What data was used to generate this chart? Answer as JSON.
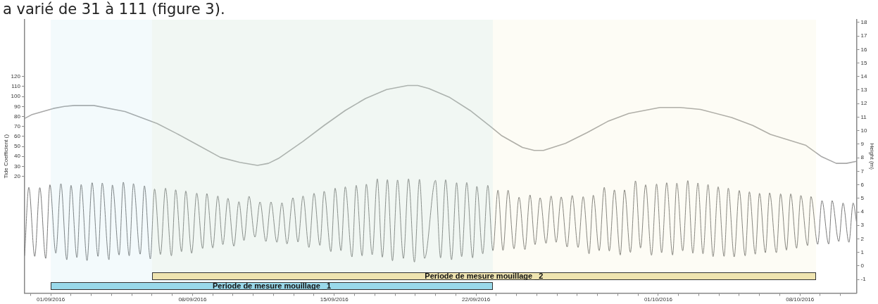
{
  "chart_data": {
    "type": "line",
    "annotations": [
      "a varié de 31 à 111 (figure 3)."
    ],
    "ylabel": "Tide Coefficient ()",
    "y2label": "Height (m)",
    "xlim": [
      "2016-08-30T17:00",
      "2016-10-10T19:00"
    ],
    "xticks": [
      {
        "value": "2016-08-31",
        "label": null
      },
      {
        "value": "2016-09-01",
        "label": "01/09/2016"
      },
      {
        "value": "2016-09-02",
        "label": null
      },
      {
        "value": "2016-09-03",
        "label": null
      },
      {
        "value": "2016-09-04",
        "label": null
      },
      {
        "value": "2016-09-05",
        "label": null
      },
      {
        "value": "2016-09-06",
        "label": null
      },
      {
        "value": "2016-09-07",
        "label": null
      },
      {
        "value": "2016-09-08",
        "label": "08/09/2016"
      },
      {
        "value": "2016-09-09",
        "label": null
      },
      {
        "value": "2016-09-10",
        "label": null
      },
      {
        "value": "2016-09-11",
        "label": null
      },
      {
        "value": "2016-09-12",
        "label": null
      },
      {
        "value": "2016-09-13",
        "label": null
      },
      {
        "value": "2016-09-14",
        "label": null
      },
      {
        "value": "2016-09-15",
        "label": "15/09/2016"
      },
      {
        "value": "2016-09-16",
        "label": null
      },
      {
        "value": "2016-09-17",
        "label": null
      },
      {
        "value": "2016-09-18",
        "label": null
      },
      {
        "value": "2016-09-19",
        "label": null
      },
      {
        "value": "2016-09-20",
        "label": null
      },
      {
        "value": "2016-09-21",
        "label": null
      },
      {
        "value": "2016-09-22",
        "label": "22/09/2016"
      },
      {
        "value": "2016-09-23",
        "label": null
      },
      {
        "value": "2016-09-24",
        "label": null
      },
      {
        "value": "2016-09-25",
        "label": null
      },
      {
        "value": "2016-09-26",
        "label": null
      },
      {
        "value": "2016-09-27",
        "label": null
      },
      {
        "value": "2016-09-28",
        "label": null
      },
      {
        "value": "2016-09-29",
        "label": null
      },
      {
        "value": "2016-09-30",
        "label": null
      },
      {
        "value": "2016-10-01",
        "label": "01/10/2016"
      },
      {
        "value": "2016-10-02",
        "label": null
      },
      {
        "value": "2016-10-03",
        "label": null
      },
      {
        "value": "2016-10-04",
        "label": null
      },
      {
        "value": "2016-10-05",
        "label": null
      },
      {
        "value": "2016-10-06",
        "label": null
      },
      {
        "value": "2016-10-07",
        "label": null
      },
      {
        "value": "2016-10-08",
        "label": "08/10/2016"
      },
      {
        "value": "2016-10-09",
        "label": null
      },
      {
        "value": "2016-10-10",
        "label": null
      }
    ],
    "ylim": [
      -97,
      177
    ],
    "yticks": [
      20,
      30,
      40,
      50,
      60,
      70,
      80,
      90,
      100,
      110,
      120
    ],
    "y2lim": [
      -2,
      18.2
    ],
    "y2ticks": [
      -1,
      0,
      1,
      2,
      3,
      4,
      5,
      6,
      7,
      8,
      9,
      10,
      11,
      12,
      13,
      14,
      15,
      16,
      17,
      18
    ],
    "series": [
      {
        "type": "line",
        "color": "#a8a8a8",
        "x": [
          "2016-08-30T17:00",
          "2016-08-31T02:00",
          "2016-09-01T03:00",
          "2016-09-01T16:00",
          "2016-09-02T04:00",
          "2016-09-03T03:00",
          "2016-09-04T16:00",
          "2016-09-06T06:00",
          "2016-09-07T05:00",
          "2016-09-08T05:00",
          "2016-09-09T09:00",
          "2016-09-10T08:00",
          "2016-09-11T05:00",
          "2016-09-11T18:00",
          "2016-09-12T06:00",
          "2016-09-13T11:00",
          "2016-09-14T12:00",
          "2016-09-15T13:00",
          "2016-09-16T13:00",
          "2016-09-17T14:00",
          "2016-09-18T15:00",
          "2016-09-19T03:00",
          "2016-09-19T16:00",
          "2016-09-20T17:00",
          "2016-09-21T17:00",
          "2016-09-22T17:00",
          "2016-09-23T06:00",
          "2016-09-24T07:00",
          "2016-09-24T21:00",
          "2016-09-25T08:00",
          "2016-09-26T10:00",
          "2016-09-27T12:00",
          "2016-09-28T12:00",
          "2016-09-29T13:00",
          "2016-10-01T02:00",
          "2016-10-02T02:00",
          "2016-10-03T02:00",
          "2016-10-04T15:00",
          "2016-10-05T16:00",
          "2016-10-06T13:00",
          "2016-10-08T07:00",
          "2016-10-09T01:00",
          "2016-10-09T19:00",
          "2016-10-10T07:00",
          "2016-10-10T19:00"
        ],
        "values": [
          78,
          82,
          88,
          90,
          91,
          91,
          85,
          73,
          63,
          52,
          39,
          34,
          31,
          33,
          38,
          55,
          71,
          86,
          98,
          107,
          111,
          111,
          108,
          99,
          86,
          70,
          61,
          49,
          46,
          46,
          53,
          64,
          75,
          83,
          89,
          89,
          87,
          79,
          71,
          62,
          51,
          40,
          33,
          33,
          35
        ]
      },
      {
        "type": "line",
        "axis": "y2",
        "color": "#7a7a7a",
        "x": [
          "2016-08-30T17:00",
          "2016-08-30T22:00",
          "2016-08-31T05:00",
          "2016-08-31T11:00",
          "2016-08-31T18:00",
          "2016-08-31T23:00",
          "2016-09-01T06:00",
          "2016-09-01T12:00",
          "2016-09-01T19:00",
          "2016-09-02T00:00",
          "2016-09-02T07:00",
          "2016-09-02T12:00",
          "2016-09-02T19:00",
          "2016-09-03T01:00",
          "2016-09-03T08:00",
          "2016-09-03T13:00",
          "2016-09-03T21:00",
          "2016-09-04T01:00",
          "2016-09-04T09:00",
          "2016-09-04T14:00",
          "2016-09-04T21:00",
          "2016-09-05T02:00",
          "2016-09-05T10:00",
          "2016-09-05T15:00",
          "2016-09-05T22:00",
          "2016-09-06T03:00",
          "2016-09-06T10:00",
          "2016-09-06T16:00",
          "2016-09-06T23:00",
          "2016-09-07T04:00",
          "2016-09-07T11:00",
          "2016-09-07T16:00",
          "2016-09-07T23:00",
          "2016-09-08T05:00",
          "2016-09-08T12:00",
          "2016-09-08T17:00",
          "2016-09-09T00:00",
          "2016-09-09T06:00",
          "2016-09-09T12:00",
          "2016-09-09T18:00",
          "2016-09-10T01:00",
          "2016-09-10T07:00",
          "2016-09-10T13:00",
          "2016-09-10T19:00",
          "2016-09-11T02:00",
          "2016-09-11T08:00",
          "2016-09-11T15:00",
          "2016-09-11T21:00",
          "2016-09-12T04:00",
          "2016-09-12T10:00",
          "2016-09-12T16:00",
          "2016-09-12T23:00",
          "2016-09-13T05:00",
          "2016-09-13T11:00",
          "2016-09-13T18:00",
          "2016-09-14T00:00",
          "2016-09-14T07:00",
          "2016-09-14T12:00",
          "2016-09-14T20:00",
          "2016-09-15T01:00",
          "2016-09-15T08:00",
          "2016-09-15T13:00",
          "2016-09-15T21:00",
          "2016-09-16T02:00",
          "2016-09-16T09:00",
          "2016-09-16T14:00",
          "2016-09-16T21:00",
          "2016-09-17T03:00",
          "2016-09-17T09:00",
          "2016-09-17T15:00",
          "2016-09-17T21:00",
          "2016-09-18T03:00",
          "2016-09-18T10:00",
          "2016-09-18T16:00",
          "2016-09-18T23:00",
          "2016-09-19T05:00",
          "2016-09-19T11:00",
          "2016-09-20T00:00",
          "2016-09-20T06:00",
          "2016-09-20T12:00",
          "2016-09-20T19:00",
          "2016-09-21T01:00",
          "2016-09-21T07:00",
          "2016-09-21T13:00",
          "2016-09-21T20:00",
          "2016-09-22T01:00",
          "2016-09-22T08:00",
          "2016-09-22T14:00",
          "2016-09-22T20:00",
          "2016-09-23T02:00",
          "2016-09-23T08:00",
          "2016-09-23T14:00",
          "2016-09-23T21:00",
          "2016-09-24T03:00",
          "2016-09-24T10:00",
          "2016-09-24T16:00",
          "2016-09-24T22:00",
          "2016-09-25T04:00",
          "2016-09-25T11:00",
          "2016-09-25T17:00",
          "2016-09-25T23:00",
          "2016-09-26T05:00",
          "2016-09-26T12:00",
          "2016-09-26T18:00",
          "2016-09-27T01:00",
          "2016-09-27T07:00",
          "2016-09-27T14:00",
          "2016-09-27T19:00",
          "2016-09-28T02:00",
          "2016-09-28T08:00",
          "2016-09-28T14:00",
          "2016-09-28T20:00",
          "2016-09-29T03:00",
          "2016-09-29T08:00",
          "2016-09-29T15:00",
          "2016-09-29T21:00",
          "2016-09-30T03:00",
          "2016-09-30T09:00",
          "2016-09-30T16:00",
          "2016-09-30T22:00",
          "2016-10-01T04:00",
          "2016-10-01T10:00",
          "2016-10-01T17:00",
          "2016-10-01T22:00",
          "2016-10-02T05:00",
          "2016-10-02T11:00",
          "2016-10-02T17:00",
          "2016-10-02T23:00",
          "2016-10-03T05:00",
          "2016-10-03T11:00",
          "2016-10-03T17:00",
          "2016-10-03T23:00",
          "2016-10-04T06:00",
          "2016-10-04T11:00",
          "2016-10-04T18:00",
          "2016-10-05T00:00",
          "2016-10-05T07:00",
          "2016-10-05T12:00",
          "2016-10-05T19:00",
          "2016-10-06T00:00",
          "2016-10-06T07:00",
          "2016-10-06T12:00",
          "2016-10-06T20:00",
          "2016-10-07T01:00",
          "2016-10-07T08:00",
          "2016-10-07T13:00",
          "2016-10-07T20:00",
          "2016-10-08T01:00",
          "2016-10-08T09:00",
          "2016-10-08T13:00",
          "2016-10-08T21:00",
          "2016-10-09T02:00",
          "2016-10-09T10:00",
          "2016-10-09T14:00",
          "2016-10-09T22:00",
          "2016-10-10T03:00",
          "2016-10-10T10:00",
          "2016-10-10T15:00",
          "2016-10-10T19:00"
        ],
        "values": [
          0.75,
          5.81,
          0.71,
          5.79,
          0.56,
          6.0,
          0.94,
          6.08,
          0.46,
          5.96,
          0.62,
          6.02,
          0.4,
          6.15,
          0.71,
          6.13,
          0.46,
          5.98,
          0.81,
          6.19,
          0.75,
          6.08,
          0.87,
          5.92,
          0.52,
          5.69,
          0.85,
          5.75,
          0.75,
          5.63,
          1.06,
          5.54,
          0.94,
          5.38,
          1.29,
          5.35,
          1.33,
          5.17,
          1.58,
          5.0,
          1.46,
          4.75,
          1.88,
          5.15,
          2.13,
          4.73,
          1.81,
          4.73,
          1.75,
          4.67,
          1.63,
          5.04,
          1.77,
          5.17,
          1.37,
          5.37,
          1.52,
          5.52,
          1.06,
          5.75,
          1.13,
          5.85,
          0.67,
          5.96,
          0.75,
          6.04,
          0.83,
          6.44,
          0.65,
          6.38,
          0.38,
          6.35,
          0.56,
          6.44,
          0.29,
          6.4,
          0.56,
          6.33,
          0.6,
          6.37,
          0.46,
          6.15,
          0.69,
          6.17,
          0.6,
          5.88,
          0.9,
          5.96,
          1.13,
          5.6,
          1.15,
          5.6,
          1.27,
          5.08,
          1.21,
          5.25,
          1.58,
          5.04,
          1.67,
          5.17,
          1.75,
          5.1,
          1.4,
          5.21,
          1.37,
          5.12,
          0.9,
          5.23,
          1.13,
          5.81,
          1.1,
          5.62,
          0.81,
          5.62,
          1.0,
          6.29,
          1.33,
          6.0,
          0.79,
          6.06,
          0.98,
          6.15,
          0.81,
          6.12,
          1.12,
          6.31,
          0.94,
          6.13,
          0.9,
          6.02,
          0.69,
          5.85,
          0.71,
          5.75,
          0.67,
          5.58,
          0.75,
          5.48,
          0.87,
          5.37,
          0.98,
          5.4,
          0.98,
          5.33,
          1.17,
          5.33,
          1.31,
          5.21,
          1.5,
          5.13,
          1.6,
          4.83,
          1.62,
          4.83,
          1.81,
          4.65,
          1.75,
          4.65,
          3.25
        ]
      }
    ],
    "bands": [
      {
        "axis": "x",
        "from": "2016-09-06T00:00",
        "to": "2016-10-08T19:00",
        "label": "Periode de mesure mouillage _2",
        "color": "#efe4b0"
      },
      {
        "axis": "x",
        "from": "2016-09-01T00:00",
        "to": "2016-09-22T20:00",
        "label": "Periode de mesure mouillage _1",
        "color": "#99d9ea"
      }
    ]
  }
}
